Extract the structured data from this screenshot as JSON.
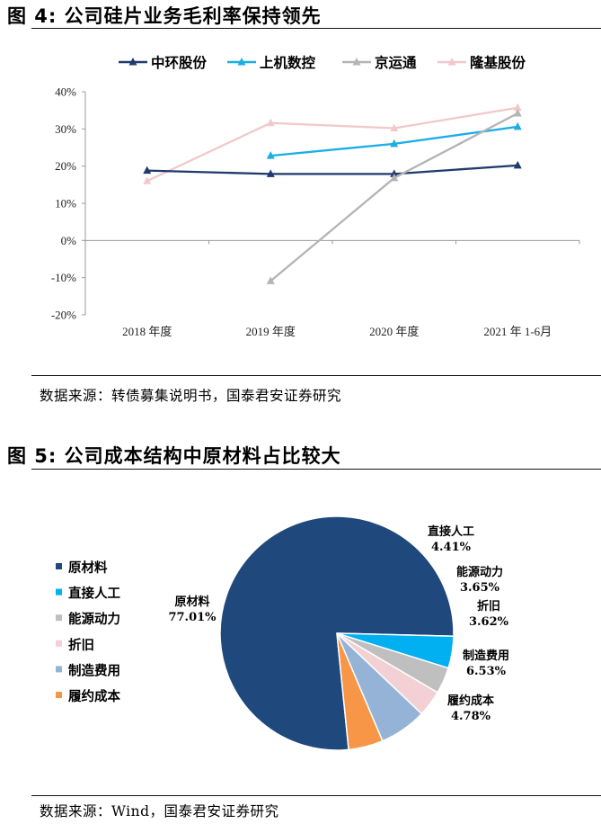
{
  "fig4": {
    "title": "图 4:  公司硅片业务毛利率保持领先",
    "source": "数据来源：转债募集说明书，国泰君安证券研究"
  },
  "fig5": {
    "title": "图 5:  公司成本结构中原材料占比较大",
    "source": "数据来源：Wind，国泰君安证券研究"
  },
  "chart_data": [
    {
      "type": "line",
      "categories": [
        "2018 年度",
        "2019 年度",
        "2020 年度",
        "2021 年 1-6月"
      ],
      "yticks": [
        "40%",
        "30%",
        "20%",
        "10%",
        "0%",
        "-10%",
        "-20%"
      ],
      "ylim": [
        -20,
        40
      ],
      "legend_position": "top",
      "series": [
        {
          "name": "中环股份",
          "color": "#1f3a6e",
          "values": [
            18.8,
            17.9,
            17.9,
            20.2
          ]
        },
        {
          "name": "上机数控",
          "color": "#1aaee5",
          "values": [
            null,
            22.8,
            26.0,
            30.6
          ]
        },
        {
          "name": "京运通",
          "color": "#b4b4b4",
          "values": [
            null,
            -10.9,
            16.8,
            34.2
          ]
        },
        {
          "name": "隆基股份",
          "color": "#f2c8cb",
          "values": [
            16.0,
            31.6,
            30.2,
            35.7
          ]
        }
      ]
    },
    {
      "type": "pie",
      "legend_position": "left",
      "slices": [
        {
          "name": "原材料",
          "value": 77.01,
          "label": "77.01%",
          "color": "#1f497d"
        },
        {
          "name": "直接人工",
          "value": 4.41,
          "label": "4.41%",
          "color": "#00b0f0"
        },
        {
          "name": "能源动力",
          "value": 3.65,
          "label": "3.65%",
          "color": "#bfbfbf"
        },
        {
          "name": "折旧",
          "value": 3.62,
          "label": "3.62%",
          "color": "#f2d0d3"
        },
        {
          "name": "制造费用",
          "value": 6.53,
          "label": "6.53%",
          "color": "#95b3d7"
        },
        {
          "name": "履约成本",
          "value": 4.78,
          "label": "4.78%",
          "color": "#f79646"
        }
      ]
    }
  ]
}
